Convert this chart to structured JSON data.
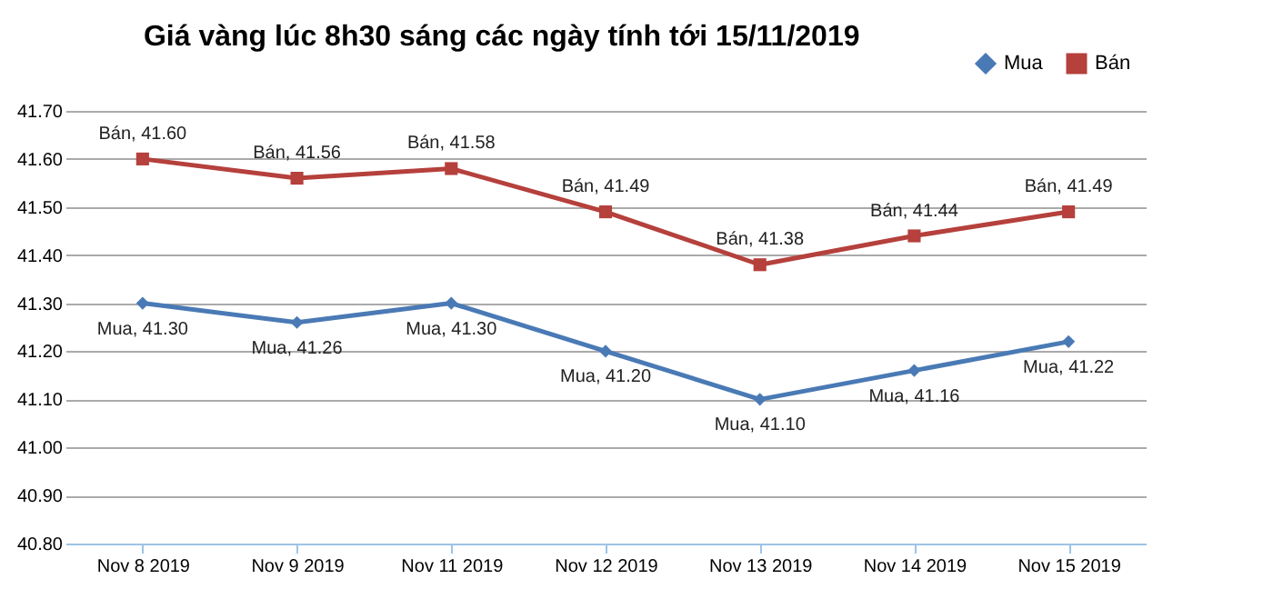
{
  "chart_data": {
    "type": "line",
    "title": "Giá vàng lúc 8h30 sáng các ngày tính tới 15/11/2019",
    "categories": [
      "Nov 8 2019",
      "Nov 9 2019",
      "Nov 11 2019",
      "Nov 12 2019",
      "Nov 13 2019",
      "Nov 14 2019",
      "Nov 15 2019"
    ],
    "series": [
      {
        "name": "Mua",
        "color": "#4a7ab5",
        "marker": "diamond",
        "values": [
          41.3,
          41.26,
          41.3,
          41.2,
          41.1,
          41.16,
          41.22
        ],
        "value_labels": [
          "Mua, 41.30",
          "Mua, 41.26",
          "Mua, 41.30",
          "Mua, 41.20",
          "Mua, 41.10",
          "Mua, 41.16",
          "Mua, 41.22"
        ]
      },
      {
        "name": "Bán",
        "color": "#b5403c",
        "marker": "square",
        "values": [
          41.6,
          41.56,
          41.58,
          41.49,
          41.38,
          41.44,
          41.49
        ],
        "value_labels": [
          "Bán, 41.60",
          "Bán, 41.56",
          "Bán, 41.58",
          "Bán, 41.49",
          "Bán, 41.38",
          "Bán, 41.44",
          "Bán, 41.49"
        ]
      }
    ],
    "ylim": [
      40.8,
      41.7
    ],
    "yticks": [
      {
        "value": 40.8,
        "label": "40.80"
      },
      {
        "value": 40.9,
        "label": "40.90"
      },
      {
        "value": 41.0,
        "label": "41.00"
      },
      {
        "value": 41.1,
        "label": "41.10"
      },
      {
        "value": 41.2,
        "label": "41.20"
      },
      {
        "value": 41.3,
        "label": "41.30"
      },
      {
        "value": 41.4,
        "label": "41.40"
      },
      {
        "value": 41.5,
        "label": "41.50"
      },
      {
        "value": 41.6,
        "label": "41.60"
      },
      {
        "value": 41.7,
        "label": "41.70"
      }
    ],
    "grid": "y",
    "legend": "top right",
    "line_style": "solid"
  }
}
